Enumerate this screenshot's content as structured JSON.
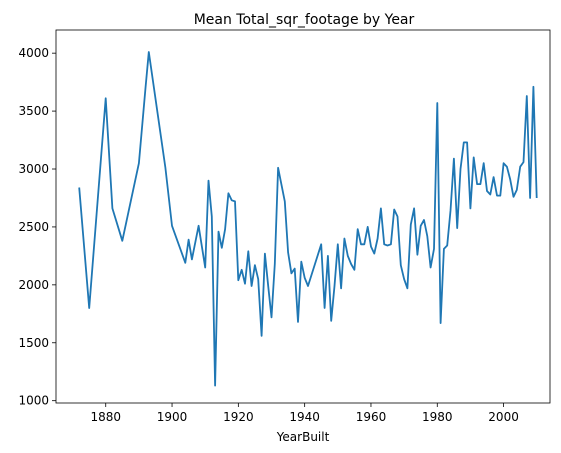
{
  "chart_data": {
    "type": "line",
    "title": "Mean Total_sqr_footage by Year",
    "xlabel": "YearBuilt",
    "ylabel": "",
    "xlim": [
      1865,
      2014
    ],
    "ylim": [
      980,
      4200
    ],
    "xticks": [
      1880,
      1900,
      1920,
      1940,
      1960,
      1980,
      2000
    ],
    "yticks": [
      1000,
      1500,
      2000,
      2500,
      3000,
      3500,
      4000
    ],
    "grid": false,
    "line_color": "#1f77b4",
    "series": [
      {
        "x": [
          1872,
          1875,
          1880,
          1882,
          1885,
          1890,
          1892,
          1893,
          1898,
          1900,
          1904,
          1905,
          1906,
          1908,
          1910,
          1911,
          1912,
          1913,
          1914,
          1915,
          1916,
          1917,
          1918,
          1919,
          1920,
          1921,
          1922,
          1923,
          1924,
          1925,
          1926,
          1927,
          1928,
          1929,
          1930,
          1931,
          1932,
          1934,
          1935,
          1936,
          1937,
          1938,
          1939,
          1940,
          1941,
          1945,
          1946,
          1947,
          1948,
          1949,
          1950,
          1951,
          1952,
          1953,
          1954,
          1955,
          1956,
          1957,
          1958,
          1959,
          1960,
          1961,
          1962,
          1963,
          1964,
          1965,
          1966,
          1967,
          1968,
          1969,
          1970,
          1971,
          1972,
          1973,
          1974,
          1975,
          1976,
          1977,
          1978,
          1979,
          1980,
          1981,
          1982,
          1983,
          1984,
          1985,
          1986,
          1987,
          1988,
          1989,
          1990,
          1991,
          1992,
          1993,
          1994,
          1995,
          1996,
          1997,
          1998,
          1999,
          2000,
          2001,
          2002,
          2003,
          2004,
          2005,
          2006,
          2007,
          2008,
          2009,
          2010
        ],
        "y": [
          2840,
          1800,
          3610,
          2660,
          2380,
          3050,
          3700,
          4010,
          3010,
          2510,
          2190,
          2390,
          2220,
          2510,
          2150,
          2900,
          2590,
          1130,
          2460,
          2320,
          2480,
          2790,
          2730,
          2720,
          2040,
          2130,
          2010,
          2290,
          1990,
          2170,
          2050,
          1560,
          2270,
          1990,
          1720,
          2180,
          3010,
          2720,
          2280,
          2100,
          2140,
          1680,
          2200,
          2060,
          1990,
          2350,
          1800,
          2250,
          1690,
          1990,
          2350,
          1970,
          2400,
          2250,
          2180,
          2130,
          2480,
          2350,
          2350,
          2500,
          2330,
          2270,
          2400,
          2660,
          2350,
          2340,
          2350,
          2650,
          2590,
          2170,
          2050,
          1970,
          2520,
          2660,
          2260,
          2510,
          2560,
          2420,
          2150,
          2310,
          3570,
          1670,
          2310,
          2340,
          2640,
          3090,
          2490,
          3000,
          3230,
          3230,
          2660,
          3100,
          2870,
          2870,
          3050,
          2810,
          2780,
          2930,
          2770,
          2770,
          3050,
          3020,
          2910,
          2760,
          2820,
          3020,
          3060,
          3630,
          2750,
          3710,
          2750
        ]
      }
    ]
  }
}
